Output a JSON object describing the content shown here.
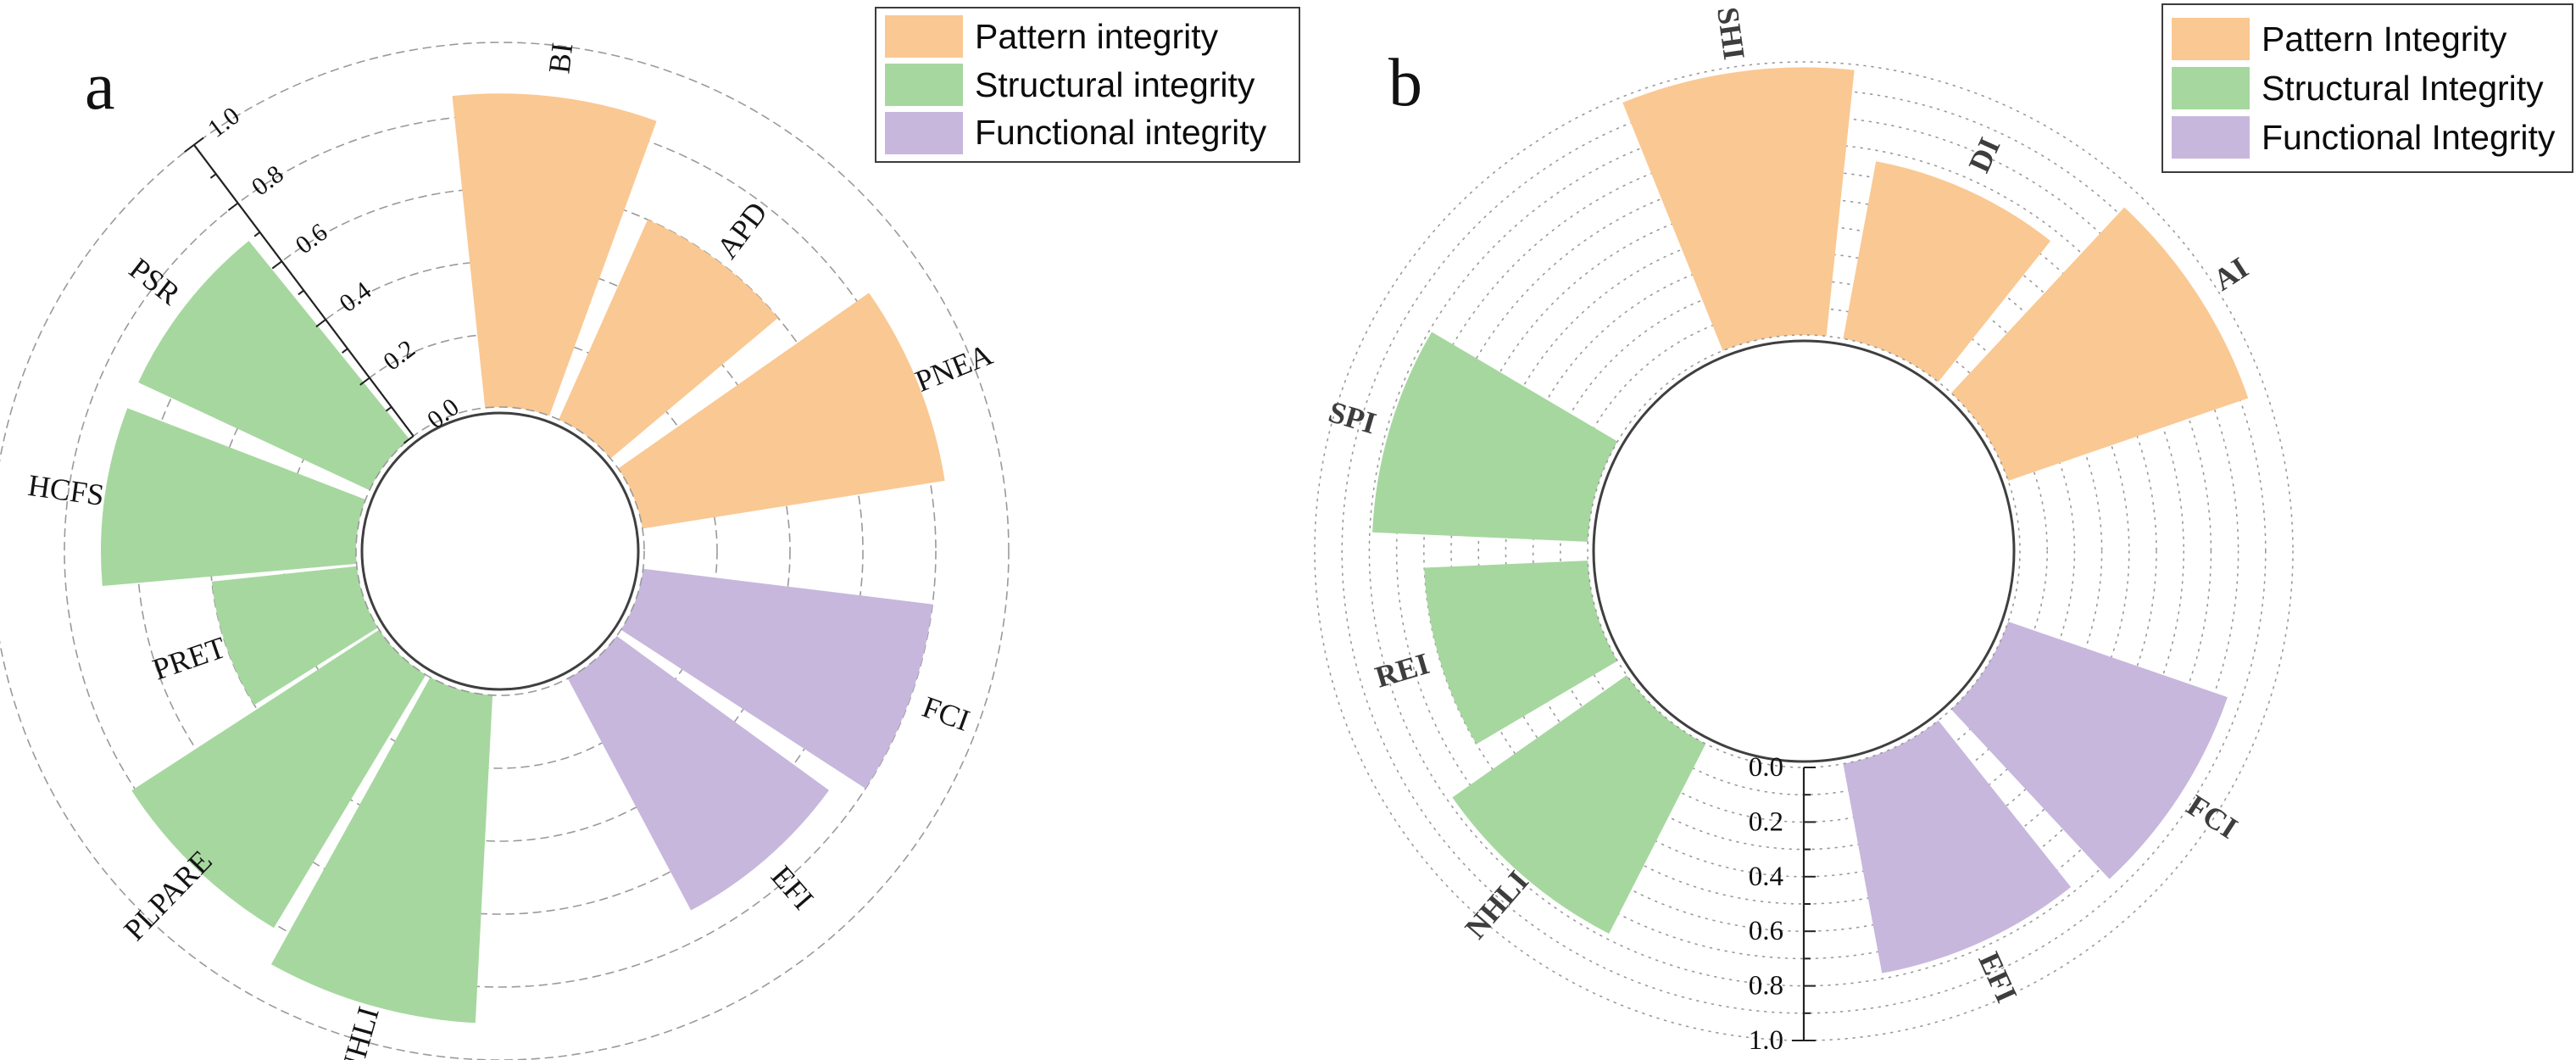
{
  "figure": {
    "background": "#ffffff",
    "panels": {
      "a": {
        "panel_label": "a"
      },
      "b": {
        "panel_label": "b"
      }
    }
  },
  "chart_data": [
    {
      "type": "bar",
      "subtype": "polar_annular_bar",
      "panel": "a",
      "title": "",
      "categories": [
        "BI",
        "APD",
        "PNEA",
        "FCI",
        "EFI",
        "NHLI",
        "PLPARE",
        "PRET",
        "HCFS",
        "PSR"
      ],
      "values": [
        0.86,
        0.6,
        0.84,
        0.8,
        0.72,
        0.9,
        0.81,
        0.4,
        0.7,
        0.7
      ],
      "groups": [
        "pattern",
        "pattern",
        "pattern",
        "functional",
        "functional",
        "structural",
        "structural",
        "structural",
        "structural",
        "structural"
      ],
      "legend": [
        {
          "label": "Pattern integrity",
          "group": "pattern",
          "color": "#FAC892"
        },
        {
          "label": "Structural integrity",
          "group": "structural",
          "color": "#A6D79F"
        },
        {
          "label": "Functional integrity",
          "group": "functional",
          "color": "#C7B7DD"
        }
      ],
      "legend_position": "top-right",
      "ylim": [
        0,
        1
      ],
      "axis": {
        "min": 0,
        "max": 1,
        "major_tick_step": 0.2,
        "minor_tick_step": 0.1,
        "tick_labels": [
          "0.0",
          "0.2",
          "0.4",
          "0.6",
          "0.8",
          "1.0"
        ]
      },
      "grid": {
        "rings": [
          0.2,
          0.4,
          0.6,
          0.8,
          1.0
        ],
        "ring_style": "dashed",
        "ring_color": "#9a9a9a"
      },
      "layout": {
        "center_x": 590,
        "center_y": 650,
        "hole_radius": 170,
        "unit_radius": 430,
        "bar_angles_deg": [
          83,
          53,
          22,
          -20,
          -49,
          -106,
          -134,
          -161,
          172,
          142
        ],
        "bar_half_width_deg": 13,
        "axis_angle_deg": 127,
        "axis_label_rotation_deg": -37,
        "axis_label_offset": 44,
        "axis_label_anchor": "middle",
        "axis_font_size": 30,
        "category_font_size": 36,
        "category_font_weight": "normal",
        "category_color": "#141414",
        "category_label_gap": 46,
        "ring_dash": "9 7",
        "hole_stroke": "#3f3f3f",
        "axis_color": "#222222"
      }
    },
    {
      "type": "bar",
      "subtype": "polar_annular_bar",
      "panel": "b",
      "title": "",
      "categories": [
        "SHI",
        "DI",
        "AI",
        "FCI",
        "EFI",
        "NHLI",
        "REI",
        "SPI"
      ],
      "values": [
        0.98,
        0.66,
        0.93,
        0.85,
        0.78,
        0.78,
        0.6,
        0.79
      ],
      "groups": [
        "pattern",
        "pattern",
        "pattern",
        "functional",
        "functional",
        "structural",
        "structural",
        "structural"
      ],
      "legend": [
        {
          "label": "Pattern Integrity",
          "group": "pattern",
          "color": "#FAC892"
        },
        {
          "label": "Structural Integrity",
          "group": "structural",
          "color": "#A6D79F"
        },
        {
          "label": "Functional Integrity",
          "group": "functional",
          "color": "#C7B7DD"
        }
      ],
      "legend_position": "top-right",
      "ylim": [
        0,
        1
      ],
      "axis": {
        "min": 0,
        "max": 1,
        "major_tick_step": 0.2,
        "minor_tick_step": 0.1,
        "tick_labels": [
          "0.0",
          "0.2",
          "0.4",
          "0.6",
          "0.8",
          "1.0"
        ]
      },
      "grid": {
        "rings": [
          0.1,
          0.2,
          0.3,
          0.4,
          0.5,
          0.6,
          0.7,
          0.8,
          0.9,
          1.0
        ],
        "ring_style": "dotted",
        "ring_color": "#9a9a9a"
      },
      "layout": {
        "center_x": 2128,
        "center_y": 650,
        "hole_radius": 255,
        "unit_radius": 322,
        "bar_angles_deg": [
          98,
          65.5,
          33,
          -33,
          -65.5,
          -131,
          -163.5,
          163.5
        ],
        "bar_half_width_deg": 14,
        "axis_angle_deg": -90,
        "axis_label_rotation_deg": 0,
        "axis_label_offset": 24,
        "axis_label_anchor": "end",
        "axis_font_size": 33,
        "category_font_size": 36,
        "category_font_weight": "bold",
        "category_color": "#3d3d3d",
        "category_label_gap": 46,
        "ring_dash": "2 7",
        "hole_stroke": "#3f3f3f",
        "axis_color": "#222222"
      }
    }
  ]
}
